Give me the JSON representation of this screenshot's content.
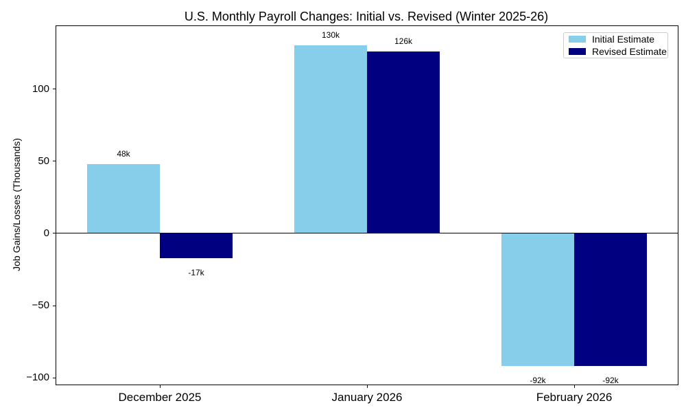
{
  "chart_data": {
    "type": "bar",
    "title": "U.S. Monthly Payroll Changes: Initial vs. Revised (Winter 2025-26)",
    "xlabel": "",
    "ylabel": "Job Gains/Losses (Thousands)",
    "categories": [
      "December 2025",
      "January 2026",
      "February 2026"
    ],
    "series": [
      {
        "name": "Initial Estimate",
        "color": "#87CEEB",
        "values": [
          48,
          130,
          -92
        ],
        "value_labels": [
          "48k",
          "130k",
          "-92k"
        ]
      },
      {
        "name": "Revised Estimate",
        "color": "#000080",
        "values": [
          -17,
          126,
          -92
        ],
        "value_labels": [
          "-17k",
          "126k",
          "-92k"
        ]
      }
    ],
    "yticks": [
      -100,
      -50,
      0,
      50,
      100
    ],
    "ylim": [
      -104.6,
      143.5
    ],
    "grid": false,
    "zero_line": true,
    "legend_position": "upper right",
    "axis_color": "#000000",
    "background_color": "#ffffff"
  }
}
